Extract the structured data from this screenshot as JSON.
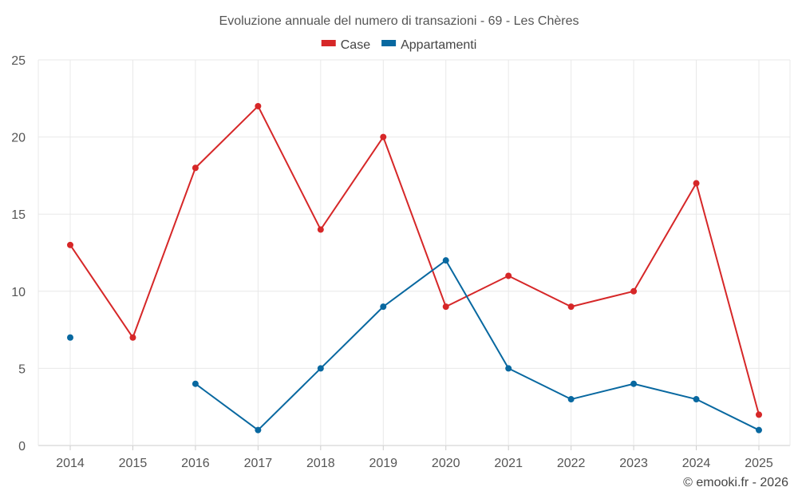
{
  "chart_data": {
    "type": "line",
    "title": "Evoluzione annuale del numero di transazioni - 69 - Les Chères",
    "categories": [
      "2014",
      "2015",
      "2016",
      "2017",
      "2018",
      "2019",
      "2020",
      "2021",
      "2022",
      "2023",
      "2024",
      "2025"
    ],
    "series": [
      {
        "name": "Case",
        "color": "#d62728",
        "values": [
          13,
          7,
          18,
          22,
          14,
          20,
          9,
          11,
          9,
          10,
          17,
          2
        ]
      },
      {
        "name": "Appartamenti",
        "color": "#0868a0",
        "values": [
          7,
          null,
          4,
          1,
          5,
          9,
          12,
          5,
          3,
          4,
          3,
          1
        ]
      }
    ],
    "ylim": [
      0,
      25
    ],
    "yticks": [
      0,
      5,
      10,
      15,
      20,
      25
    ],
    "xlabel": "",
    "ylabel": "",
    "grid": true,
    "legend_position": "top-center"
  },
  "credit": "© emooki.fr - 2026"
}
